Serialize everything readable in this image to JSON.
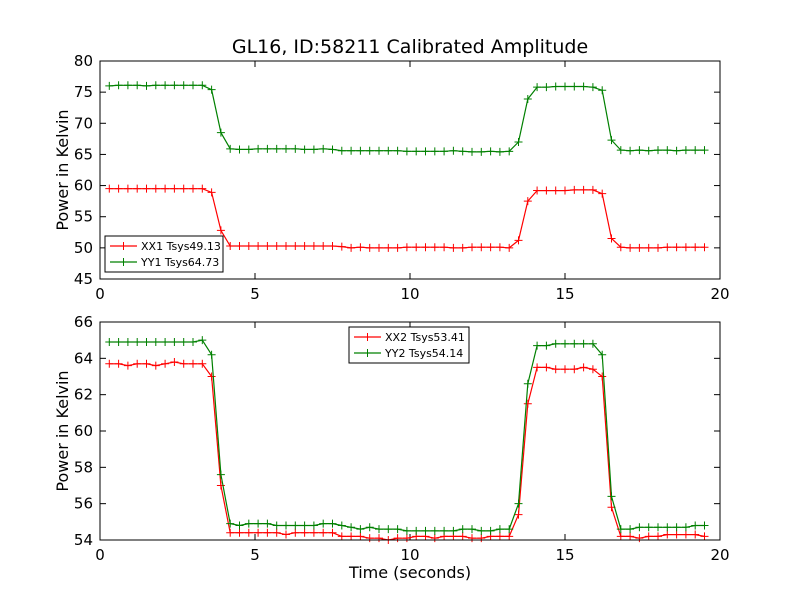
{
  "figure_title": "GL16, ID:58211 Calibrated Amplitude",
  "chart_data": [
    {
      "type": "line",
      "title": "GL16, ID:58211 Calibrated Amplitude",
      "xlabel": "",
      "ylabel": "Power in Kelvin",
      "xlim": [
        0,
        20
      ],
      "ylim": [
        45,
        80
      ],
      "xticks": [
        0,
        5,
        10,
        15,
        20
      ],
      "yticks": [
        45,
        50,
        55,
        60,
        65,
        70,
        75,
        80
      ],
      "grid": false,
      "legend_position": "lower-left",
      "x": [
        0.3,
        0.6,
        0.9,
        1.2,
        1.5,
        1.8,
        2.1,
        2.4,
        2.7,
        3.0,
        3.3,
        3.6,
        3.9,
        4.2,
        4.5,
        4.8,
        5.1,
        5.4,
        5.7,
        6.0,
        6.3,
        6.6,
        6.9,
        7.2,
        7.5,
        7.8,
        8.1,
        8.4,
        8.7,
        9.0,
        9.3,
        9.6,
        9.9,
        10.2,
        10.5,
        10.8,
        11.1,
        11.4,
        11.7,
        12.0,
        12.3,
        12.6,
        12.9,
        13.2,
        13.5,
        13.8,
        14.1,
        14.4,
        14.7,
        15.0,
        15.3,
        15.6,
        15.9,
        16.2,
        16.5,
        16.8,
        17.1,
        17.4,
        17.7,
        18.0,
        18.3,
        18.6,
        18.9,
        19.2,
        19.5
      ],
      "series": [
        {
          "name": "XX1 Tsys49.13",
          "color": "#ff0000",
          "values": [
            59.5,
            59.5,
            59.5,
            59.5,
            59.5,
            59.5,
            59.5,
            59.5,
            59.5,
            59.5,
            59.5,
            58.9,
            52.8,
            50.3,
            50.3,
            50.3,
            50.3,
            50.3,
            50.3,
            50.3,
            50.3,
            50.3,
            50.3,
            50.3,
            50.3,
            50.2,
            50.0,
            50.1,
            50.0,
            50.0,
            50.0,
            50.0,
            50.1,
            50.1,
            50.1,
            50.1,
            50.1,
            50.0,
            50.0,
            50.1,
            50.1,
            50.1,
            50.1,
            50.0,
            51.2,
            57.5,
            59.2,
            59.2,
            59.2,
            59.2,
            59.3,
            59.3,
            59.3,
            58.7,
            51.5,
            50.1,
            50.0,
            50.0,
            50.0,
            50.0,
            50.1,
            50.1,
            50.1,
            50.1,
            50.1
          ]
        },
        {
          "name": "YY1 Tsys64.73",
          "color": "#008000",
          "values": [
            76.0,
            76.1,
            76.1,
            76.1,
            76.0,
            76.1,
            76.1,
            76.1,
            76.1,
            76.1,
            76.1,
            75.4,
            68.5,
            65.9,
            65.8,
            65.8,
            65.9,
            65.9,
            65.9,
            65.9,
            65.9,
            65.8,
            65.8,
            65.9,
            65.8,
            65.6,
            65.6,
            65.6,
            65.6,
            65.6,
            65.6,
            65.6,
            65.5,
            65.5,
            65.5,
            65.5,
            65.5,
            65.6,
            65.5,
            65.4,
            65.4,
            65.5,
            65.4,
            65.5,
            67.0,
            73.9,
            75.8,
            75.8,
            75.9,
            75.9,
            75.9,
            75.9,
            75.8,
            75.3,
            67.3,
            65.7,
            65.6,
            65.7,
            65.6,
            65.7,
            65.7,
            65.6,
            65.7,
            65.7,
            65.7
          ]
        }
      ]
    },
    {
      "type": "line",
      "title": "",
      "xlabel": "Time (seconds)",
      "ylabel": "Power in Kelvin",
      "xlim": [
        0,
        20
      ],
      "ylim": [
        54,
        66
      ],
      "xticks": [
        0,
        5,
        10,
        15,
        20
      ],
      "yticks": [
        54,
        56,
        58,
        60,
        62,
        64,
        66
      ],
      "grid": false,
      "legend_position": "top-center",
      "x": [
        0.3,
        0.6,
        0.9,
        1.2,
        1.5,
        1.8,
        2.1,
        2.4,
        2.7,
        3.0,
        3.3,
        3.6,
        3.9,
        4.2,
        4.5,
        4.8,
        5.1,
        5.4,
        5.7,
        6.0,
        6.3,
        6.6,
        6.9,
        7.2,
        7.5,
        7.8,
        8.1,
        8.4,
        8.7,
        9.0,
        9.3,
        9.6,
        9.9,
        10.2,
        10.5,
        10.8,
        11.1,
        11.4,
        11.7,
        12.0,
        12.3,
        12.6,
        12.9,
        13.2,
        13.5,
        13.8,
        14.1,
        14.4,
        14.7,
        15.0,
        15.3,
        15.6,
        15.9,
        16.2,
        16.5,
        16.8,
        17.1,
        17.4,
        17.7,
        18.0,
        18.3,
        18.6,
        18.9,
        19.2,
        19.5
      ],
      "series": [
        {
          "name": "XX2 Tsys53.41",
          "color": "#ff0000",
          "values": [
            63.7,
            63.7,
            63.6,
            63.7,
            63.7,
            63.6,
            63.7,
            63.8,
            63.7,
            63.7,
            63.7,
            63.0,
            57.0,
            54.4,
            54.4,
            54.4,
            54.4,
            54.4,
            54.4,
            54.3,
            54.4,
            54.4,
            54.4,
            54.4,
            54.4,
            54.2,
            54.2,
            54.2,
            54.1,
            54.1,
            54.0,
            54.1,
            54.1,
            54.2,
            54.2,
            54.1,
            54.2,
            54.2,
            54.2,
            54.1,
            54.1,
            54.2,
            54.2,
            54.2,
            55.4,
            61.5,
            63.5,
            63.5,
            63.4,
            63.4,
            63.4,
            63.5,
            63.4,
            63.0,
            55.8,
            54.2,
            54.2,
            54.1,
            54.2,
            54.2,
            54.3,
            54.3,
            54.3,
            54.3,
            54.2
          ]
        },
        {
          "name": "YY2 Tsys54.14",
          "color": "#008000",
          "values": [
            64.9,
            64.9,
            64.9,
            64.9,
            64.9,
            64.9,
            64.9,
            64.9,
            64.9,
            64.9,
            65.0,
            64.2,
            57.6,
            54.9,
            54.8,
            54.9,
            54.9,
            54.9,
            54.8,
            54.8,
            54.8,
            54.8,
            54.8,
            54.9,
            54.9,
            54.8,
            54.7,
            54.6,
            54.7,
            54.6,
            54.6,
            54.6,
            54.5,
            54.5,
            54.5,
            54.5,
            54.5,
            54.5,
            54.6,
            54.6,
            54.5,
            54.5,
            54.6,
            54.6,
            56.0,
            62.6,
            64.7,
            64.7,
            64.8,
            64.8,
            64.8,
            64.8,
            64.8,
            64.2,
            56.4,
            54.6,
            54.6,
            54.7,
            54.7,
            54.7,
            54.7,
            54.7,
            54.7,
            54.8,
            54.8
          ]
        }
      ]
    }
  ]
}
